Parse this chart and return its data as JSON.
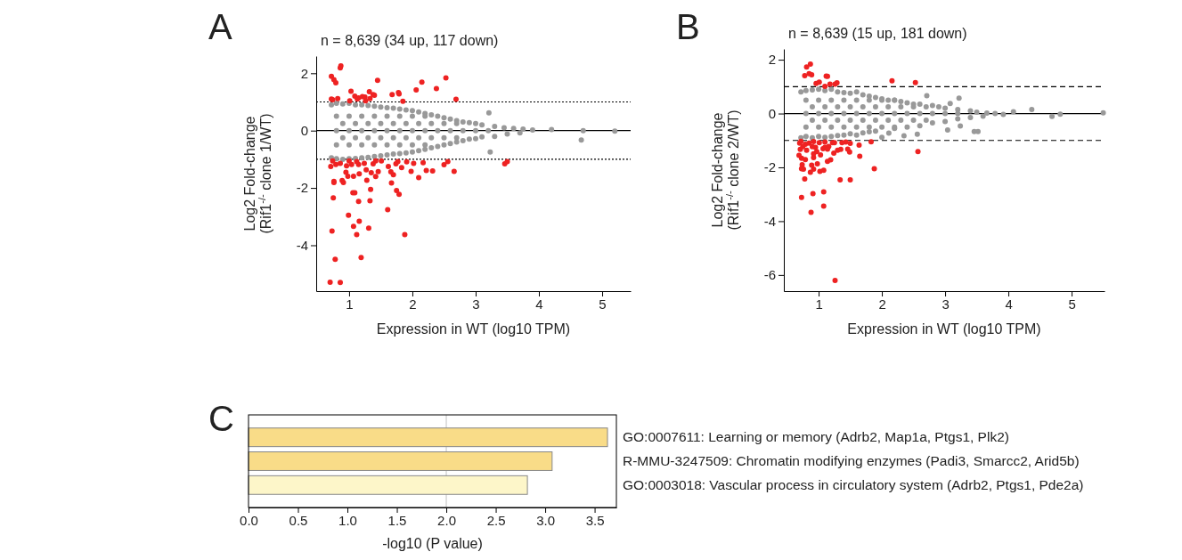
{
  "chart_data": [
    {
      "type": "scatter",
      "title": "n = 8,639  (34 up, 117 down)",
      "xlabel": "Expression in WT (log10 TPM)",
      "ylabel": "Log2 Fold-change\n(Rif1$^{-/-}$ clone 1/WT)",
      "annotations": [
        "A"
      ],
      "marker": "circle",
      "xlim": [
        0.48,
        5.45
      ],
      "ylim": [
        -5.6,
        2.6
      ],
      "xticks": [
        1,
        2,
        3,
        4,
        5
      ],
      "yticks": [
        -4,
        -2,
        0,
        2
      ],
      "ref_lines": [
        {
          "axis": "y",
          "value": 1,
          "line_style": "dotted",
          "color": "#000000"
        },
        {
          "axis": "y",
          "value": -1,
          "line_style": "dotted",
          "color": "#000000"
        },
        {
          "axis": "y",
          "value": 0,
          "line_style": "solid",
          "color": "#000000"
        }
      ],
      "series": [
        {
          "color": "#999999",
          "x": [
            0.72,
            0.8,
            0.9,
            1.0,
            1.1,
            1.2,
            1.3,
            1.4,
            1.5,
            1.6,
            1.7,
            1.8,
            1.9,
            2.0,
            2.1,
            2.2,
            2.3,
            2.4,
            2.5,
            2.6,
            2.7,
            2.8,
            2.9,
            3.0,
            3.1,
            3.21,
            3.3,
            3.45,
            3.6,
            3.75,
            3.9,
            4.2,
            4.7,
            5.2,
            4.67,
            0.72,
            0.8,
            0.9,
            1.0,
            1.1,
            1.2,
            1.3,
            1.4,
            1.5,
            1.6,
            1.7,
            1.8,
            1.9,
            2.0,
            2.1,
            2.2,
            2.3,
            2.4,
            2.5,
            2.6,
            2.7,
            2.8,
            2.9,
            3.0,
            3.1,
            3.23,
            3.3,
            3.5,
            3.7,
            0.8,
            1.0,
            1.2,
            1.4,
            1.6,
            1.8,
            2.0,
            2.2,
            0.8,
            1.0,
            1.2,
            1.4,
            1.6,
            1.8,
            2.0,
            2.2,
            0.8,
            1.0,
            1.2,
            1.4,
            1.6,
            1.8,
            2.0,
            2.2,
            0.9,
            1.1,
            1.3,
            1.5,
            1.7,
            1.9,
            2.1,
            2.3,
            2.5,
            2.7,
            0.9,
            1.1,
            1.3,
            1.5,
            1.7,
            1.9,
            2.1,
            2.3,
            2.5,
            2.7,
            2.4,
            2.6,
            2.8,
            3.0,
            3.2
          ],
          "values": [
            0.9,
            0.95,
            0.93,
            0.95,
            0.9,
            0.9,
            0.88,
            0.85,
            0.82,
            0.8,
            0.78,
            0.75,
            0.72,
            0.7,
            0.65,
            0.6,
            0.55,
            0.5,
            0.45,
            0.4,
            0.35,
            0.3,
            0.28,
            0.25,
            0.2,
            0.62,
            0.15,
            0.1,
            0.08,
            0.05,
            0.02,
            0.04,
            0.0,
            -0.02,
            -0.33,
            -0.95,
            -0.98,
            -1.0,
            -0.98,
            -0.97,
            -0.95,
            -0.93,
            -0.9,
            -0.88,
            -0.85,
            -0.82,
            -0.8,
            -0.78,
            -0.75,
            -0.7,
            -0.65,
            -0.6,
            -0.55,
            -0.5,
            -0.45,
            -0.4,
            -0.35,
            -0.3,
            -0.28,
            -0.22,
            -0.75,
            -0.2,
            -0.12,
            -0.08,
            0.5,
            0.5,
            0.5,
            0.5,
            0.5,
            0.5,
            0.5,
            0.5,
            0,
            0,
            0,
            0,
            0,
            0,
            0,
            0,
            -0.5,
            -0.5,
            -0.5,
            -0.5,
            -0.5,
            -0.5,
            -0.5,
            -0.5,
            0.25,
            0.25,
            0.25,
            0.25,
            0.25,
            0.25,
            0.25,
            0.25,
            0.25,
            0.25,
            -0.25,
            -0.25,
            -0.25,
            -0.25,
            -0.25,
            -0.25,
            -0.25,
            -0.25,
            -0.25,
            -0.25,
            0,
            0,
            0,
            0,
            0
          ]
        },
        {
          "color": "#ee2222",
          "x": [
            0.87,
            0.86,
            0.72,
            0.76,
            0.79,
            1.45,
            2.15,
            2.53,
            2.38,
            2.06,
            1.03,
            1.68,
            1.78,
            1.79,
            0.72,
            0.74,
            0.82,
            1.09,
            1.15,
            1.21,
            1.25,
            1.32,
            1.38,
            1.4,
            1.01,
            1.26,
            1.85,
            2.69,
            1.33,
            1.13,
            0.7,
            0.86,
            0.78,
            1.19,
            0.73,
            1.07,
            1.16,
            1.12,
            1.31,
            1.88,
            0.99,
            1.61,
            0.75,
            1.15,
            1.33,
            1.06,
            1.09,
            1.34,
            1.75,
            1.79,
            1.67,
            0.76,
            0.76,
            0.89,
            0.91,
            1.28,
            2.1,
            0.98,
            1.07,
            1.42,
            1.7,
            0.95,
            1.16,
            1.27,
            1.35,
            1.46,
            1.66,
            1.98,
            2.22,
            2.32,
            2.66,
            2.5,
            2.56,
            3.46,
            3.5,
            0.71,
            0.79,
            0.86,
            0.96,
            1.04,
            1.15,
            1.24,
            1.38,
            1.51,
            1.62,
            1.74,
            1.83,
            1.91,
            2.02,
            2.17,
            0.74,
            1.0,
            1.12,
            1.42,
            1.77
          ],
          "values": [
            2.26,
            2.19,
            1.89,
            1.78,
            1.67,
            1.75,
            1.69,
            1.84,
            1.47,
            1.42,
            1.37,
            1.26,
            1.33,
            1.28,
            1.1,
            1.08,
            1.12,
            1.2,
            1.14,
            1.19,
            1.17,
            1.36,
            1.26,
            1.23,
            1.04,
            1.04,
            1.02,
            1.09,
            1.12,
            1.1,
            -5.29,
            -5.3,
            -4.49,
            -4.43,
            -3.5,
            -3.34,
            -3.16,
            -3.63,
            -3.4,
            -3.63,
            -2.95,
            -2.76,
            -2.35,
            -2.47,
            -2.45,
            -2.17,
            -2.17,
            -2.05,
            -2.09,
            -2.22,
            -1.83,
            -1.77,
            -1.81,
            -1.74,
            -1.81,
            -1.73,
            -1.64,
            -1.59,
            -1.59,
            -1.6,
            -1.54,
            -1.45,
            -1.51,
            -1.37,
            -1.47,
            -1.43,
            -1.44,
            -1.42,
            -1.39,
            -1.41,
            -1.42,
            -1.19,
            -1.08,
            -1.16,
            -1.08,
            -1.25,
            -1.18,
            -1.14,
            -1.23,
            -1.18,
            -1.18,
            -1.14,
            -1.16,
            -1.06,
            -1.25,
            -1.16,
            -1.29,
            -1.09,
            -1.14,
            -1.12,
            -1.06,
            -1.06,
            -1.08,
            -1.06,
            -1.08
          ]
        }
      ]
    },
    {
      "type": "scatter",
      "title": "n = 8,639 (15 up, 181 down)",
      "xlabel": "Expression in WT (log10 TPM)",
      "ylabel": "Log2 Fold-change\n(Rif1$^{-/-}$ clone 2/WT)",
      "annotations": [
        "B"
      ],
      "marker": "circle",
      "xlim": [
        0.45,
        5.52
      ],
      "ylim": [
        -6.6,
        2.4
      ],
      "xticks": [
        1,
        2,
        3,
        4,
        5
      ],
      "yticks": [
        -6,
        -4,
        -2,
        0,
        2
      ],
      "ref_lines": [
        {
          "axis": "y",
          "value": 1,
          "line_style": "dashed",
          "color": "#000000"
        },
        {
          "axis": "y",
          "value": -1,
          "line_style": "dashed",
          "color": "#000000"
        },
        {
          "axis": "y",
          "value": 0,
          "line_style": "solid",
          "color": "#000000"
        }
      ],
      "series": [
        {
          "color": "#999999",
          "x": [
            0.72,
            0.8,
            0.9,
            1.0,
            1.1,
            1.2,
            1.3,
            1.4,
            1.5,
            1.6,
            1.7,
            1.8,
            1.9,
            2.0,
            2.1,
            2.2,
            2.3,
            2.4,
            2.5,
            2.6,
            2.8,
            2.9,
            3.0,
            3.2,
            3.4,
            3.5,
            0.72,
            0.8,
            0.9,
            1.0,
            1.1,
            1.2,
            1.3,
            1.4,
            1.5,
            1.6,
            1.7,
            1.8,
            1.9,
            2.2,
            2.4,
            2.6,
            2.8,
            3.0,
            3.2,
            3.4,
            3.6,
            3.22,
            3.08,
            2.71,
            4.08,
            4.37,
            4.69,
            4.82,
            5.5,
            3.66,
            3.79,
            3.92,
            3.52,
            3.46,
            3.24,
            3.04,
            2.56,
            2.35,
            2.0,
            2.11,
            0.8,
            1.0,
            1.2,
            1.4,
            1.6,
            1.8,
            2.0,
            2.2,
            0.8,
            1.0,
            1.2,
            1.4,
            1.6,
            1.8,
            2.0,
            2.2,
            0.8,
            1.0,
            1.2,
            1.4,
            1.6,
            1.8,
            2.0,
            2.2,
            0.9,
            1.1,
            1.3,
            1.5,
            1.7,
            1.9,
            2.1,
            2.3,
            2.5,
            2.7,
            0.9,
            1.1,
            1.3,
            1.5,
            1.7,
            1.9,
            2.1,
            2.3,
            2.5,
            2.7,
            2.4,
            2.6,
            2.8,
            3.0,
            3.2
          ],
          "values": [
            0.8,
            0.85,
            0.88,
            0.9,
            0.85,
            0.9,
            0.8,
            0.78,
            0.75,
            0.8,
            0.7,
            0.65,
            0.6,
            0.55,
            0.5,
            0.5,
            0.45,
            0.4,
            0.35,
            0.35,
            0.3,
            0.25,
            0.2,
            0.15,
            0.1,
            0.05,
            -0.9,
            -0.85,
            -0.9,
            -0.85,
            -0.88,
            -0.85,
            -0.82,
            -0.8,
            -0.75,
            -0.8,
            -0.72,
            -0.68,
            -0.65,
            -0.55,
            -0.5,
            -0.45,
            -0.35,
            -0.3,
            -0.2,
            -0.15,
            -0.1,
            0.57,
            0.37,
            0.66,
            0.07,
            0.15,
            -0.11,
            -0.02,
            0.03,
            0.02,
            0.0,
            -0.03,
            -0.67,
            -0.67,
            -0.46,
            -0.61,
            -0.77,
            -0.83,
            -0.88,
            -0.73,
            0.5,
            0.5,
            0.5,
            0.5,
            0.5,
            0.5,
            0.5,
            0.5,
            0,
            0,
            0,
            0,
            0,
            0,
            0,
            0,
            -0.5,
            -0.5,
            -0.5,
            -0.5,
            -0.5,
            -0.5,
            -0.5,
            -0.5,
            0.25,
            0.25,
            0.25,
            0.25,
            0.25,
            0.25,
            0.25,
            0.25,
            0.25,
            0.25,
            -0.25,
            -0.25,
            -0.25,
            -0.25,
            -0.25,
            -0.25,
            -0.25,
            -0.25,
            -0.25,
            -0.25,
            0,
            0,
            0,
            0,
            0
          ]
        },
        {
          "color": "#ee2222",
          "x": [
            0.87,
            0.81,
            0.85,
            0.89,
            0.78,
            1.12,
            1.14,
            0.96,
            1.01,
            1.18,
            1.29,
            1.26,
            2.16,
            2.53,
            1.1,
            1.26,
            0.88,
            0.73,
            0.91,
            1.08,
            1.08,
            1.34,
            1.5,
            0.78,
            1.88,
            0.87,
            1.02,
            1.08,
            0.92,
            0.73,
            0.76,
            0.89,
            0.98,
            0.74,
            1.14,
            1.19,
            0.79,
            0.92,
            0.73,
            1.65,
            2.57,
            0.69,
            0.92,
            1.03,
            1.24,
            1.49,
            0.71,
            0.81,
            0.95,
            1.07,
            1.3,
            1.46,
            0.75,
            0.9,
            1.1,
            1.16,
            1.35,
            1.64,
            0.7,
            0.79,
            0.85,
            1.01,
            1.1,
            1.22,
            1.25,
            1.43,
            1.5,
            1.83,
            0.72,
            0.92,
            1.37,
            0.97,
            1.14
          ],
          "values": [
            1.84,
            1.73,
            1.48,
            1.44,
            1.41,
            1.39,
            1.38,
            1.12,
            1.17,
            1.09,
            1.14,
            1.09,
            1.22,
            1.15,
            1.01,
            -6.2,
            -3.67,
            -3.12,
            -2.98,
            -2.91,
            -3.44,
            -2.46,
            -2.46,
            -2.43,
            -2.05,
            -2.18,
            -2.15,
            -2.11,
            -2.07,
            -2.05,
            -2.07,
            -1.92,
            -1.87,
            -1.9,
            -1.78,
            -1.72,
            -1.71,
            -1.64,
            -1.66,
            -1.59,
            -1.41,
            -1.55,
            -1.5,
            -1.54,
            -1.47,
            -1.43,
            -1.33,
            -1.36,
            -1.26,
            -1.31,
            -1.36,
            -1.32,
            -1.23,
            -1.23,
            -1.26,
            -1.22,
            -1.33,
            -1.17,
            -1.1,
            -1.14,
            -1.1,
            -1.08,
            -1.06,
            -1.08,
            -1.08,
            -1.06,
            -1.11,
            -1.05,
            -1.03,
            -1.04,
            -1.08,
            -1.41,
            -1.32
          ]
        }
      ]
    },
    {
      "type": "bar",
      "orientation": "horizontal",
      "xlabel": "-log10 (P value)",
      "annotations": [
        "C"
      ],
      "categories": [
        "GO:0007611: Learning or memory (Adrb2, Map1a, Ptgs1, Plk2)",
        "R-MMU-3247509: Chromatin modifying enzymes (Padi3, Smarcc2, Arid5b)",
        "GO:0003018: Vascular process in circulatory system (Adrb2, Ptgs1, Pde2a)"
      ],
      "values": [
        3.63,
        3.07,
        2.82
      ],
      "colors": [
        "#f9dc88",
        "#f9dc88",
        "#fdf6c9"
      ],
      "xlim": [
        0,
        3.72
      ],
      "xticks": [
        {
          "value": 0,
          "label": "0.0"
        },
        0.5,
        {
          "value": 1,
          "label": "1.0"
        },
        1.5,
        {
          "value": 2,
          "label": "2.0"
        },
        2.5,
        {
          "value": 3,
          "label": "3.0"
        },
        3.5
      ],
      "ref_lines": [
        {
          "axis": "x",
          "value": 2,
          "line_style": "solid",
          "color": "#cccccc"
        }
      ]
    }
  ]
}
